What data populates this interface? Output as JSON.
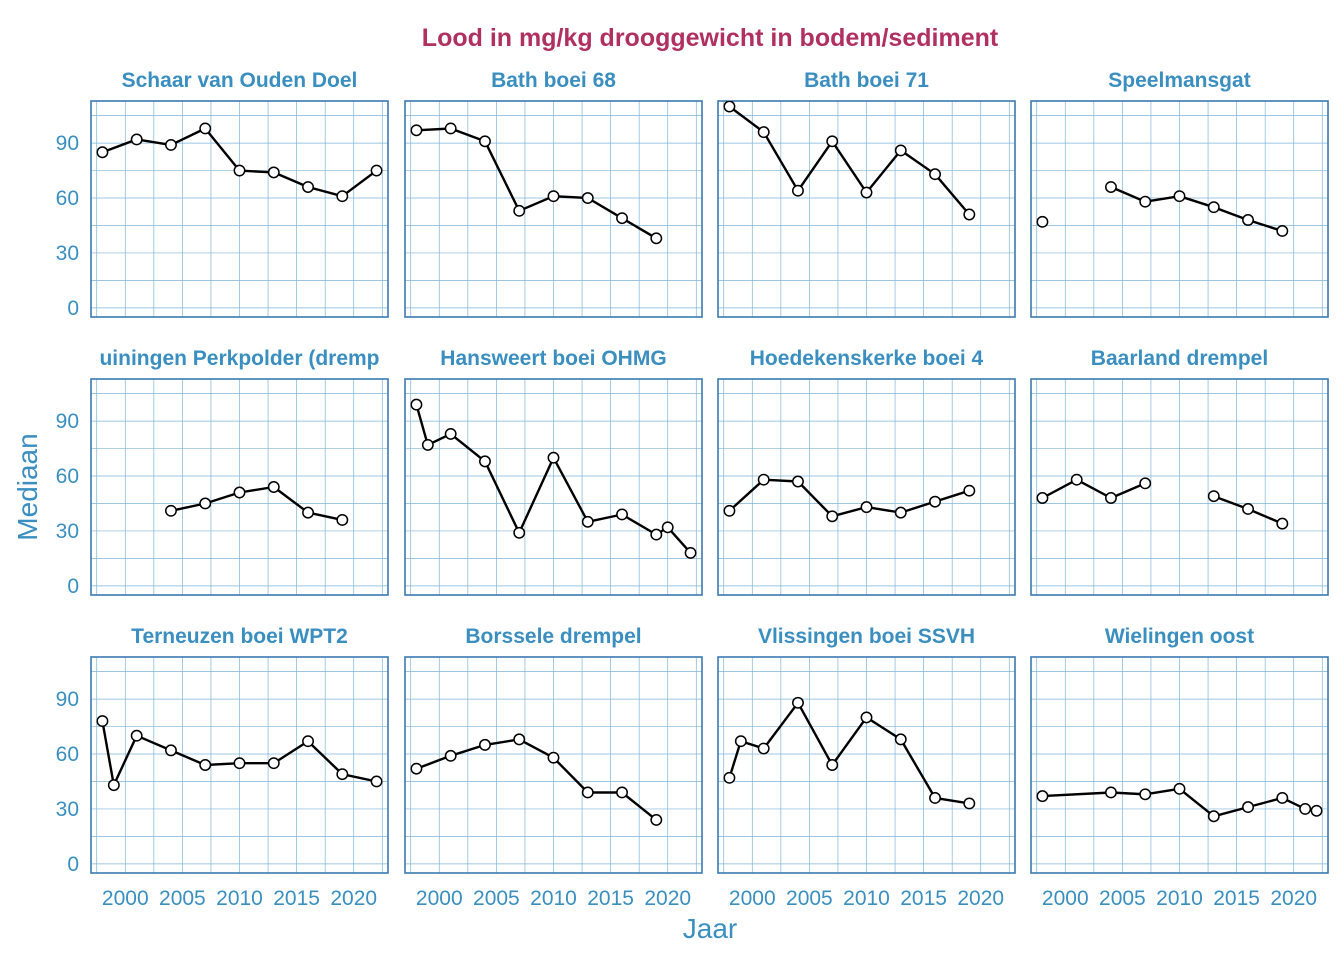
{
  "chart_data": {
    "type": "line",
    "title": "Lood in mg/kg drooggewicht in bodem/sediment",
    "xlabel": "Jaar",
    "ylabel": "Mediaan",
    "xlim": [
      1997,
      2023
    ],
    "ylim": [
      -5,
      113
    ],
    "x_ticks": [
      2000,
      2005,
      2010,
      2015,
      2020
    ],
    "y_ticks": [
      0,
      30,
      60,
      90
    ],
    "grid": true,
    "colors": {
      "title": "#b03060",
      "panel_title": "#3a8fc0",
      "axis_text": "#3a8fc0",
      "panel_border": "#3a7ab0",
      "grid": "#7fb4d8",
      "line": "#000000",
      "marker_fill": "#ffffff"
    },
    "panels": [
      {
        "title": "Schaar van Ouden Doel",
        "segments": [
          [
            [
              1998,
              85
            ],
            [
              2001,
              92
            ],
            [
              2004,
              89
            ],
            [
              2007,
              98
            ],
            [
              2010,
              75
            ],
            [
              2013,
              74
            ],
            [
              2016,
              66
            ],
            [
              2019,
              61
            ],
            [
              2022,
              75
            ]
          ]
        ]
      },
      {
        "title": "Bath boei 68",
        "segments": [
          [
            [
              1998,
              97
            ],
            [
              2001,
              98
            ],
            [
              2004,
              91
            ],
            [
              2007,
              53
            ],
            [
              2010,
              61
            ],
            [
              2013,
              60
            ],
            [
              2016,
              49
            ],
            [
              2019,
              38
            ]
          ]
        ]
      },
      {
        "title": "Bath boei 71",
        "segments": [
          [
            [
              1998,
              110
            ],
            [
              2001,
              96
            ],
            [
              2004,
              64
            ],
            [
              2007,
              91
            ],
            [
              2010,
              63
            ],
            [
              2013,
              86
            ],
            [
              2016,
              73
            ],
            [
              2019,
              51
            ]
          ]
        ]
      },
      {
        "title": "Speelmansgat",
        "segments": [
          [
            [
              1998,
              47
            ]
          ],
          [
            [
              2004,
              66
            ],
            [
              2007,
              58
            ],
            [
              2010,
              61
            ],
            [
              2013,
              55
            ],
            [
              2016,
              48
            ],
            [
              2019,
              42
            ]
          ]
        ]
      },
      {
        "title": "uiningen Perkpolder (dremp",
        "segments": [
          [
            [
              2004,
              41
            ],
            [
              2007,
              45
            ],
            [
              2010,
              51
            ],
            [
              2013,
              54
            ],
            [
              2016,
              40
            ],
            [
              2019,
              36
            ]
          ]
        ]
      },
      {
        "title": "Hansweert boei OHMG",
        "segments": [
          [
            [
              1998,
              99
            ],
            [
              1999,
              77
            ],
            [
              2001,
              83
            ],
            [
              2004,
              68
            ],
            [
              2007,
              29
            ],
            [
              2010,
              70
            ],
            [
              2013,
              35
            ],
            [
              2016,
              39
            ],
            [
              2019,
              28
            ],
            [
              2020,
              32
            ],
            [
              2022,
              18
            ]
          ]
        ]
      },
      {
        "title": "Hoedekenskerke boei 4",
        "segments": [
          [
            [
              1998,
              41
            ],
            [
              2001,
              58
            ],
            [
              2004,
              57
            ],
            [
              2007,
              38
            ],
            [
              2010,
              43
            ],
            [
              2013,
              40
            ],
            [
              2016,
              46
            ],
            [
              2019,
              52
            ]
          ]
        ]
      },
      {
        "title": "Baarland drempel",
        "segments": [
          [
            [
              1998,
              48
            ],
            [
              2001,
              58
            ],
            [
              2004,
              48
            ],
            [
              2007,
              56
            ]
          ],
          [
            [
              2013,
              49
            ],
            [
              2016,
              42
            ],
            [
              2019,
              34
            ]
          ]
        ]
      },
      {
        "title": "Terneuzen boei WPT2",
        "segments": [
          [
            [
              1998,
              78
            ],
            [
              1999,
              43
            ],
            [
              2001,
              70
            ],
            [
              2004,
              62
            ],
            [
              2007,
              54
            ],
            [
              2010,
              55
            ],
            [
              2013,
              55
            ],
            [
              2016,
              67
            ],
            [
              2019,
              49
            ],
            [
              2022,
              45
            ]
          ]
        ]
      },
      {
        "title": "Borssele drempel",
        "segments": [
          [
            [
              1998,
              52
            ],
            [
              2001,
              59
            ],
            [
              2004,
              65
            ],
            [
              2007,
              68
            ],
            [
              2010,
              58
            ],
            [
              2013,
              39
            ],
            [
              2016,
              39
            ],
            [
              2019,
              24
            ]
          ]
        ]
      },
      {
        "title": "Vlissingen boei SSVH",
        "segments": [
          [
            [
              1998,
              47
            ],
            [
              1999,
              67
            ],
            [
              2001,
              63
            ],
            [
              2004,
              88
            ],
            [
              2007,
              54
            ],
            [
              2010,
              80
            ],
            [
              2013,
              68
            ],
            [
              2016,
              36
            ],
            [
              2019,
              33
            ]
          ]
        ]
      },
      {
        "title": "Wielingen oost",
        "segments": [
          [
            [
              1998,
              37
            ],
            [
              2004,
              39
            ],
            [
              2007,
              38
            ],
            [
              2010,
              41
            ],
            [
              2013,
              26
            ],
            [
              2016,
              31
            ],
            [
              2019,
              36
            ],
            [
              2021,
              30
            ],
            [
              2022,
              29
            ]
          ]
        ]
      }
    ]
  }
}
